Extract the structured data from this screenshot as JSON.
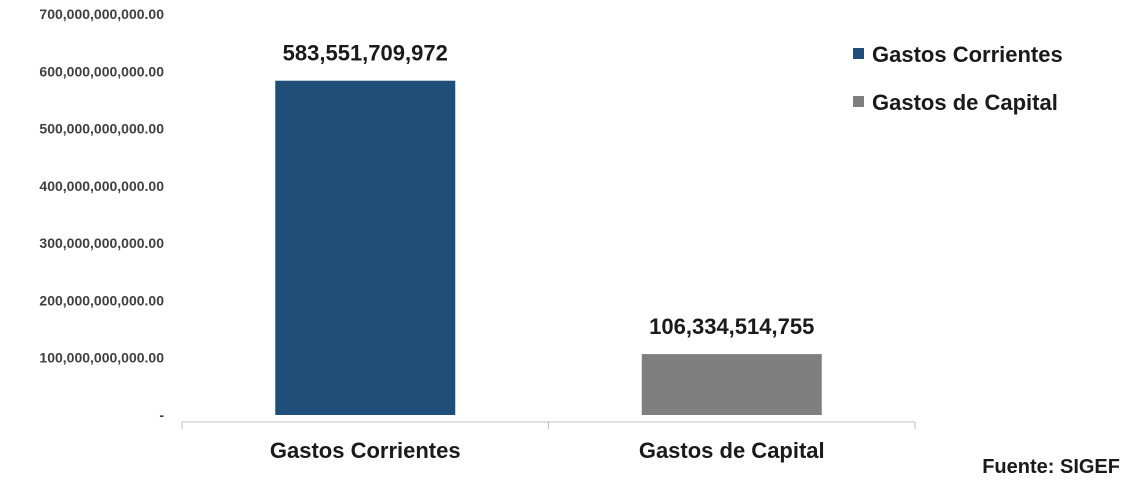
{
  "chart_data": {
    "type": "bar",
    "categories": [
      "Gastos Corrientes",
      "Gastos de Capital"
    ],
    "values": [
      583551709972,
      106334514755
    ],
    "data_labels": [
      "583,551,709,972",
      "106,334,514,755"
    ],
    "colors": [
      "#1f4e79",
      "#7f7f7f"
    ],
    "ylim": [
      0,
      700000000000
    ],
    "yticks": [
      0,
      100000000000,
      200000000000,
      300000000000,
      400000000000,
      500000000000,
      600000000000,
      700000000000
    ],
    "ytick_labels": [
      "-",
      "100,000,000,000.00",
      "200,000,000,000.00",
      "300,000,000,000.00",
      "400,000,000,000.00",
      "500,000,000,000.00",
      "600,000,000,000.00",
      "700,000,000,000.00"
    ],
    "legend": [
      "Gastos Corrientes",
      "Gastos de Capital"
    ],
    "legend_position": "top-right",
    "grid": false,
    "title": "",
    "xlabel": "",
    "ylabel": ""
  },
  "source_text": "Fuente: SIGEF"
}
